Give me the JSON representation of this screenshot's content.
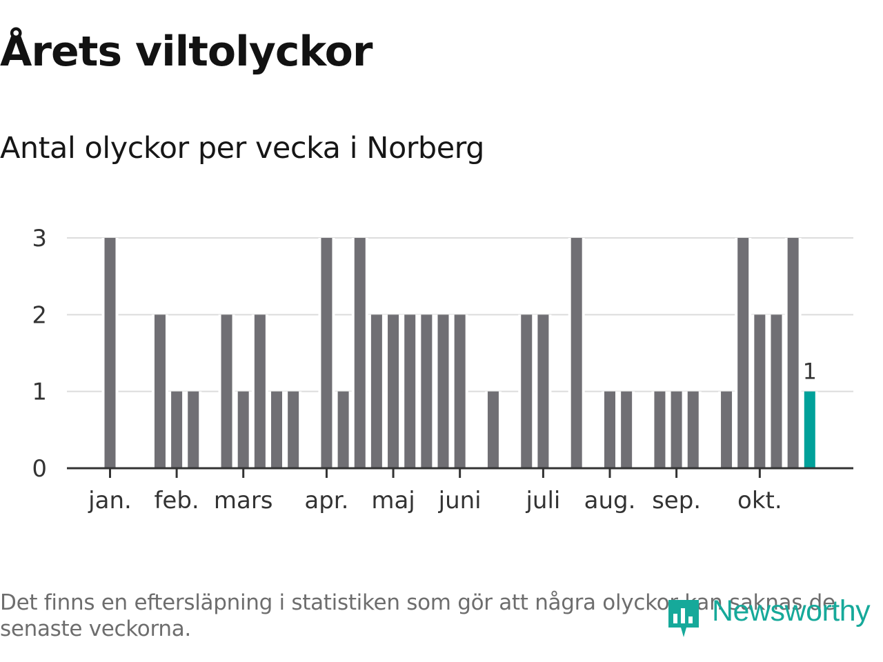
{
  "header": {
    "title": "Årets viltolyckor",
    "subtitle": "Antal olyckor per vecka i Norberg"
  },
  "chart_data": {
    "type": "bar",
    "title": "Årets viltolyckor",
    "subtitle": "Antal olyckor per vecka i Norberg",
    "xlabel": "",
    "ylabel": "",
    "ylim": [
      0,
      3
    ],
    "y_ticks": [
      "0",
      "1",
      "2",
      "3"
    ],
    "grid": true,
    "weeks": [
      1,
      2,
      3,
      4,
      5,
      6,
      7,
      8,
      9,
      10,
      11,
      12,
      13,
      14,
      15,
      16,
      17,
      18,
      19,
      20,
      21,
      22,
      23,
      24,
      25,
      26,
      27,
      28,
      29,
      30,
      31,
      32,
      33,
      34,
      35,
      36,
      37,
      38,
      39,
      40,
      41,
      42,
      43
    ],
    "values": [
      3,
      0,
      0,
      2,
      1,
      1,
      0,
      2,
      1,
      2,
      1,
      1,
      0,
      3,
      1,
      3,
      2,
      2,
      2,
      2,
      2,
      2,
      0,
      1,
      0,
      2,
      2,
      0,
      3,
      0,
      1,
      1,
      0,
      1,
      1,
      1,
      0,
      1,
      3,
      2,
      2,
      3,
      1
    ],
    "highlight_index": 42,
    "highlight_label": "1",
    "month_labels": [
      "jan.",
      "feb.",
      "mars",
      "apr.",
      "maj",
      "juni",
      "juli",
      "aug.",
      "sep.",
      "okt."
    ],
    "month_tick_weeks": [
      1,
      5,
      9,
      14,
      18,
      22,
      27,
      31,
      35,
      40
    ],
    "colors": {
      "bar": "#706f74",
      "highlight": "#00a19a",
      "grid": "#dcdcdc",
      "axis": "#333333",
      "text": "#333333"
    }
  },
  "footer": {
    "note": "Det finns en eftersläpning i statistiken som gör att några olyckor kan saknas de senaste veckorna.",
    "brand": "Newsworthy",
    "brand_icon": "newsworthy-logo-icon",
    "brand_color": "#16a99a"
  }
}
